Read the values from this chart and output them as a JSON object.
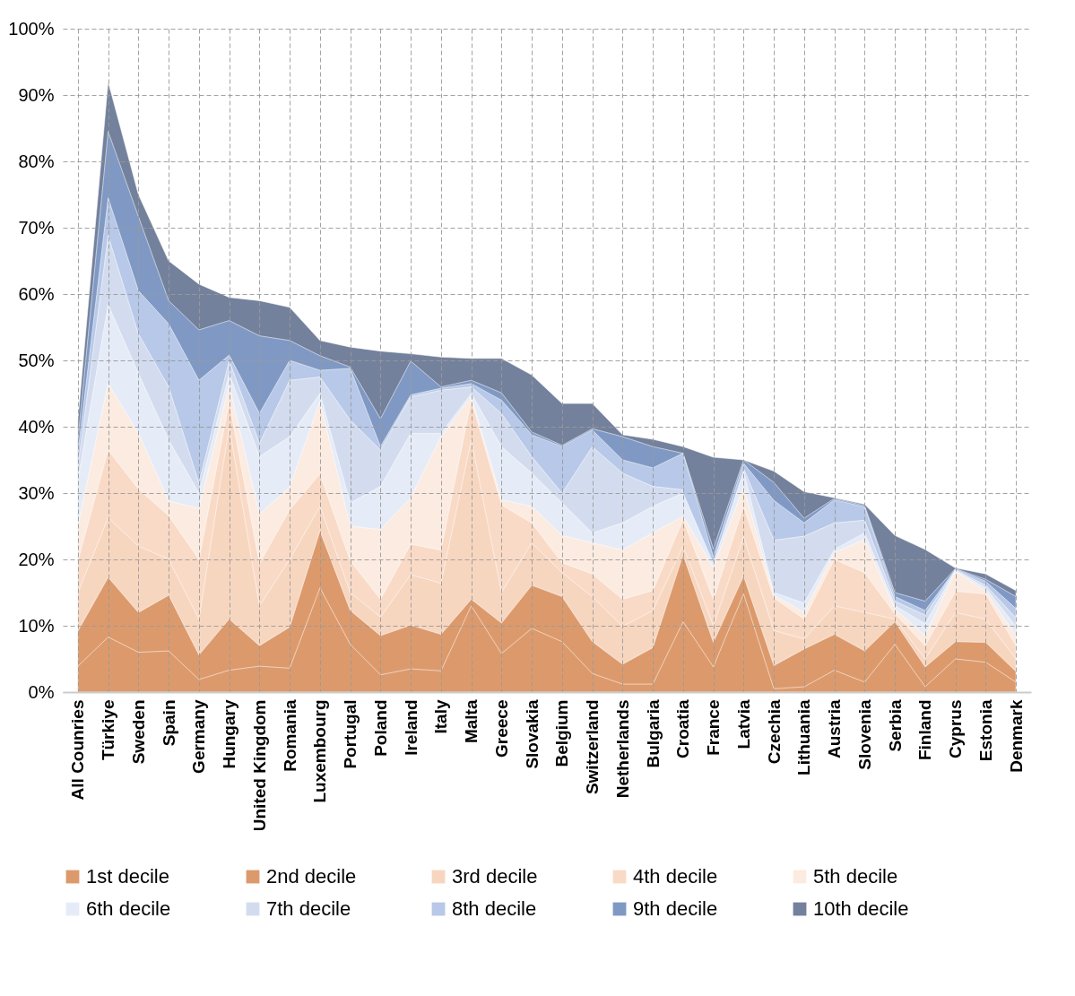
{
  "chart_data": {
    "type": "area",
    "categories": [
      "All Counries",
      "Türkiye",
      "Sweden",
      "Spain",
      "Germany",
      "Hungary",
      "United Kingdom",
      "Romania",
      "Luxembourg",
      "Portugal",
      "Poland",
      "Ireland",
      "Italy",
      "Malta",
      "Greece",
      "Slovakia",
      "Belgium",
      "Switzerland",
      "Netherlands",
      "Bulgaria",
      "Croatia",
      "France",
      "Latvia",
      "Czechia",
      "Lithuania",
      "Austria",
      "Slovenia",
      "Serbia",
      "Finland",
      "Cyprus",
      "Estonia",
      "Denmark"
    ],
    "series": [
      {
        "name": "1st decile",
        "color": "#dc9a6c",
        "values": [
          3.9,
          8.3,
          6,
          6.2,
          1.9,
          3.3,
          3.9,
          3.6,
          15.7,
          7.2,
          2.6,
          3.5,
          3.2,
          13,
          5.8,
          9.6,
          7.6,
          2.8,
          1.2,
          1.2,
          10.6,
          3.8,
          14.8,
          0.5,
          0.8,
          3.3,
          1.5,
          7.2,
          0.8,
          5,
          4.5,
          1.5
        ]
      },
      {
        "name": "2nd decile",
        "color": "#dc9a6c",
        "values": [
          9.2,
          17.3,
          12,
          14.6,
          5.6,
          11,
          7,
          9.8,
          24.3,
          12.3,
          8.5,
          10.1,
          8.7,
          14,
          10.4,
          16.1,
          14.4,
          7.6,
          4.2,
          6.7,
          20.7,
          7.5,
          17.5,
          4,
          6.5,
          8.7,
          6.2,
          10.6,
          3.8,
          7.6,
          7.5,
          3.1
        ]
      },
      {
        "name": "3rd decile",
        "color": "#f7d6c0",
        "values": [
          15,
          26.3,
          22,
          20,
          11,
          40,
          13,
          20,
          28,
          15,
          11.3,
          17.7,
          16.4,
          38,
          15,
          22.5,
          18,
          14.4,
          9.9,
          12.3,
          22,
          10,
          23.4,
          9.3,
          8,
          13,
          12,
          11,
          5,
          12,
          11,
          5
        ]
      },
      {
        "name": "4th decile",
        "color": "#f9dac6",
        "values": [
          19.8,
          36.5,
          30.6,
          26.6,
          20,
          43.7,
          19.4,
          27.5,
          32.9,
          19.8,
          14,
          22.3,
          21.4,
          44,
          28.2,
          25.5,
          19.5,
          17.8,
          14,
          15.3,
          26,
          14,
          28,
          14.2,
          11,
          20,
          18,
          11.8,
          7,
          15.2,
          14.8,
          7
        ]
      },
      {
        "name": "5th decile",
        "color": "#fcebe0",
        "values": [
          25,
          46.5,
          39,
          28.8,
          27.7,
          46.2,
          26.8,
          30.9,
          43.8,
          25,
          24.5,
          29.3,
          38.5,
          44.5,
          29,
          28,
          23.6,
          22.5,
          21.4,
          24,
          26.5,
          18.8,
          30.9,
          14.6,
          12,
          21,
          23,
          12.5,
          8.5,
          18.2,
          15.2,
          8.5
        ]
      },
      {
        "name": "6th decile",
        "color": "#e6ecf7",
        "values": [
          32,
          58.4,
          48,
          38,
          30,
          48,
          35.5,
          38.5,
          45,
          28.5,
          31,
          39,
          39,
          45,
          37,
          33,
          28.5,
          24,
          25.5,
          28,
          30,
          19.4,
          33.3,
          15,
          13.4,
          21.5,
          24,
          13,
          10.3,
          18.3,
          15.7,
          9.9
        ]
      },
      {
        "name": "7th decile",
        "color": "#d3dcef",
        "values": [
          34,
          68.8,
          54,
          46,
          31.5,
          50,
          37.5,
          47,
          47.5,
          41,
          36.5,
          44.5,
          45.5,
          46,
          42,
          35.5,
          30,
          37,
          33,
          31,
          30.5,
          null,
          33.7,
          22.9,
          23.5,
          25.5,
          25.9,
          13.7,
          11.6,
          18.4,
          16.1,
          11.2
        ]
      },
      {
        "name": "8th decile",
        "color": "#b7c8e8",
        "values": [
          36,
          74.5,
          60.5,
          55.5,
          47,
          50.8,
          42,
          50,
          48.5,
          48.8,
          37,
          44.8,
          45.8,
          46.5,
          44,
          38.8,
          37,
          39.5,
          35,
          33.8,
          36,
          20.4,
          34.5,
          28.9,
          25.5,
          29,
          27.9,
          14.4,
          12.3,
          18.5,
          16.7,
          12.6
        ]
      },
      {
        "name": "9th decile",
        "color": "#8099c4",
        "values": [
          38,
          84.5,
          71.7,
          59,
          54.6,
          56,
          53.7,
          53,
          50.7,
          49,
          41.2,
          49.9,
          46,
          47,
          45.1,
          39.2,
          37.2,
          39.7,
          38.5,
          37,
          36,
          21.6,
          35,
          31.6,
          26.2,
          29.2,
          28.1,
          15,
          13.7,
          18.6,
          17,
          14.4
        ]
      },
      {
        "name": "10th decile",
        "color": "#74819c",
        "values": [
          41,
          92,
          75,
          65,
          61.5,
          59.5,
          59,
          58,
          53,
          52,
          51.4,
          51,
          50.5,
          50.3,
          50.3,
          47.8,
          43.5,
          43.5,
          38.8,
          38.1,
          37,
          35.4,
          35,
          33.3,
          30.2,
          29.3,
          28.3,
          23.6,
          21.5,
          18.7,
          17.8,
          15.3
        ]
      }
    ],
    "ylim": [
      0,
      100
    ],
    "yticks": [
      {
        "value": 0,
        "label": "0%"
      },
      {
        "value": 10,
        "label": "10%"
      },
      {
        "value": 20,
        "label": "20%"
      },
      {
        "value": 30,
        "label": "30%"
      },
      {
        "value": 40,
        "label": "40%"
      },
      {
        "value": 50,
        "label": "50%"
      },
      {
        "value": 60,
        "label": "60%"
      },
      {
        "value": 70,
        "label": "70%"
      },
      {
        "value": 80,
        "label": "80%"
      },
      {
        "value": 90,
        "label": "90%"
      },
      {
        "value": 100,
        "label": "100%"
      }
    ],
    "grid": true,
    "legend": "bottom"
  }
}
